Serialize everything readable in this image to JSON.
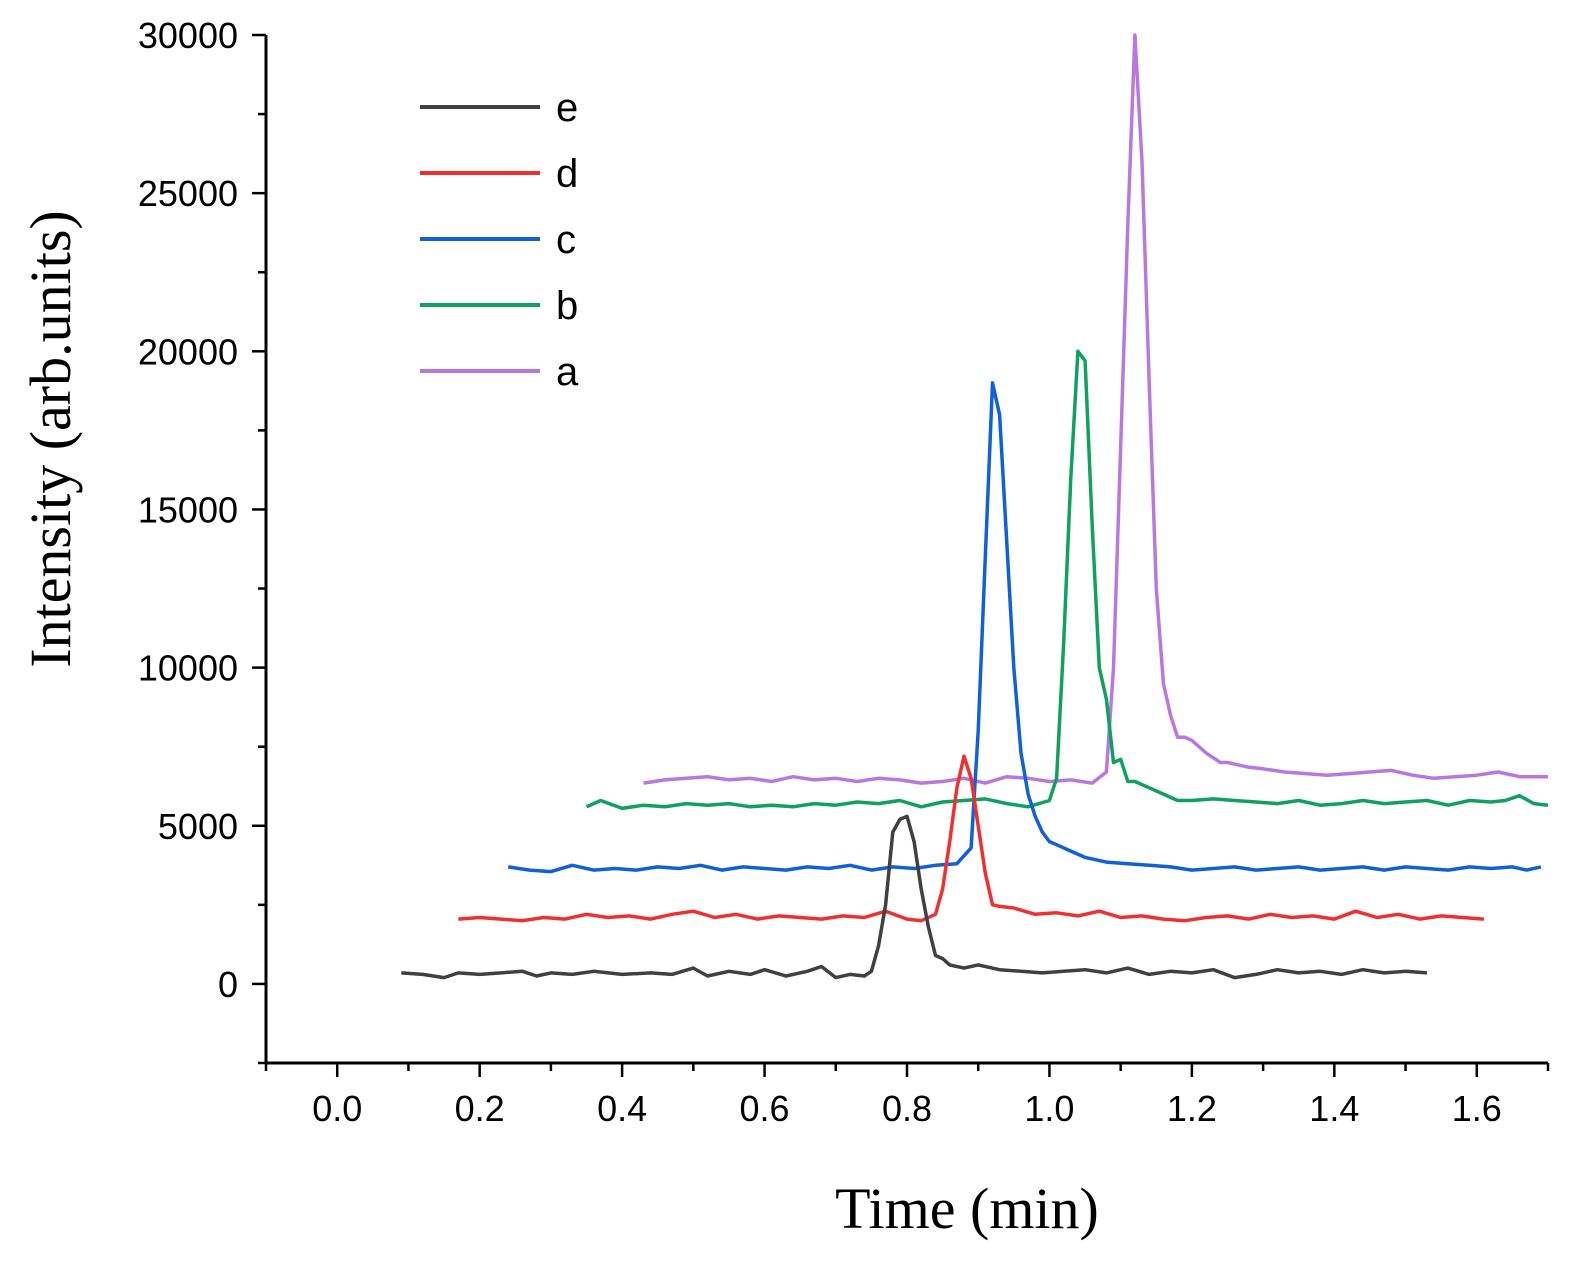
{
  "chart_data": {
    "type": "line",
    "title": "",
    "xlabel": "Time (min)",
    "ylabel": "Intensity (arb.units)",
    "xlim": [
      -0.1,
      1.7
    ],
    "ylim": [
      -2500,
      30000
    ],
    "xticks": [
      "0.0",
      "0.2",
      "0.4",
      "0.6",
      "0.8",
      "1.0",
      "1.2",
      "1.4",
      "1.6"
    ],
    "yticks": [
      "0",
      "5000",
      "10000",
      "15000",
      "20000",
      "25000",
      "30000"
    ],
    "legend_position": "top-left",
    "series": [
      {
        "name": "e",
        "color": "#404040",
        "x": [
          0.09,
          0.12,
          0.15,
          0.17,
          0.2,
          0.23,
          0.26,
          0.28,
          0.3,
          0.33,
          0.36,
          0.4,
          0.44,
          0.47,
          0.5,
          0.52,
          0.55,
          0.58,
          0.6,
          0.63,
          0.66,
          0.68,
          0.7,
          0.72,
          0.74,
          0.75,
          0.76,
          0.77,
          0.78,
          0.79,
          0.8,
          0.81,
          0.82,
          0.83,
          0.84,
          0.85,
          0.86,
          0.88,
          0.9,
          0.93,
          0.96,
          0.99,
          1.02,
          1.05,
          1.08,
          1.11,
          1.14,
          1.17,
          1.2,
          1.23,
          1.26,
          1.29,
          1.32,
          1.35,
          1.38,
          1.41,
          1.44,
          1.47,
          1.5,
          1.53
        ],
        "y": [
          350,
          300,
          200,
          350,
          300,
          350,
          400,
          250,
          350,
          300,
          400,
          300,
          350,
          300,
          500,
          250,
          400,
          300,
          450,
          250,
          400,
          550,
          200,
          300,
          250,
          400,
          1200,
          2500,
          4800,
          5200,
          5300,
          4500,
          3000,
          1800,
          900,
          800,
          600,
          500,
          600,
          450,
          400,
          350,
          400,
          450,
          350,
          500,
          300,
          400,
          350,
          450,
          200,
          300,
          450,
          350,
          400,
          300,
          450,
          350,
          400,
          350
        ]
      },
      {
        "name": "d",
        "color": "#f03030",
        "x": [
          0.17,
          0.2,
          0.23,
          0.26,
          0.29,
          0.32,
          0.35,
          0.38,
          0.41,
          0.44,
          0.47,
          0.5,
          0.53,
          0.56,
          0.59,
          0.62,
          0.65,
          0.68,
          0.71,
          0.74,
          0.77,
          0.8,
          0.82,
          0.84,
          0.85,
          0.86,
          0.87,
          0.88,
          0.89,
          0.9,
          0.91,
          0.92,
          0.93,
          0.95,
          0.98,
          1.01,
          1.04,
          1.07,
          1.1,
          1.13,
          1.16,
          1.19,
          1.22,
          1.25,
          1.28,
          1.31,
          1.34,
          1.37,
          1.4,
          1.43,
          1.46,
          1.49,
          1.52,
          1.55,
          1.58,
          1.61
        ],
        "y": [
          2050,
          2100,
          2050,
          2000,
          2100,
          2050,
          2200,
          2100,
          2150,
          2050,
          2200,
          2300,
          2100,
          2200,
          2050,
          2150,
          2100,
          2050,
          2150,
          2100,
          2300,
          2050,
          2000,
          2200,
          3000,
          4500,
          6200,
          7200,
          6500,
          5000,
          3500,
          2500,
          2450,
          2400,
          2200,
          2250,
          2150,
          2300,
          2100,
          2150,
          2050,
          2000,
          2100,
          2150,
          2050,
          2200,
          2100,
          2150,
          2050,
          2300,
          2100,
          2200,
          2050,
          2150,
          2100,
          2050
        ]
      },
      {
        "name": "c",
        "color": "#1060d8",
        "x": [
          0.24,
          0.27,
          0.3,
          0.33,
          0.36,
          0.39,
          0.42,
          0.45,
          0.48,
          0.51,
          0.54,
          0.57,
          0.6,
          0.63,
          0.66,
          0.69,
          0.72,
          0.75,
          0.78,
          0.81,
          0.84,
          0.87,
          0.89,
          0.9,
          0.91,
          0.92,
          0.93,
          0.94,
          0.95,
          0.96,
          0.97,
          0.98,
          0.99,
          1.0,
          1.01,
          1.03,
          1.05,
          1.08,
          1.11,
          1.14,
          1.17,
          1.2,
          1.23,
          1.26,
          1.29,
          1.32,
          1.35,
          1.38,
          1.41,
          1.44,
          1.47,
          1.5,
          1.53,
          1.56,
          1.59,
          1.62,
          1.65,
          1.67,
          1.69
        ],
        "y": [
          3700,
          3600,
          3550,
          3750,
          3600,
          3650,
          3600,
          3700,
          3650,
          3750,
          3600,
          3700,
          3650,
          3600,
          3700,
          3650,
          3750,
          3600,
          3700,
          3650,
          3750,
          3800,
          4300,
          8000,
          13500,
          19000,
          18000,
          14000,
          10000,
          7300,
          6000,
          5300,
          4800,
          4500,
          4400,
          4200,
          4000,
          3850,
          3800,
          3750,
          3700,
          3600,
          3650,
          3700,
          3600,
          3650,
          3700,
          3600,
          3650,
          3700,
          3600,
          3700,
          3650,
          3600,
          3700,
          3650,
          3700,
          3600,
          3700
        ]
      },
      {
        "name": "b",
        "color": "#10a060",
        "x": [
          0.35,
          0.37,
          0.4,
          0.43,
          0.46,
          0.49,
          0.52,
          0.55,
          0.58,
          0.61,
          0.64,
          0.67,
          0.7,
          0.73,
          0.76,
          0.79,
          0.82,
          0.85,
          0.88,
          0.91,
          0.94,
          0.97,
          1.0,
          1.01,
          1.02,
          1.03,
          1.04,
          1.05,
          1.06,
          1.07,
          1.08,
          1.09,
          1.1,
          1.11,
          1.12,
          1.14,
          1.16,
          1.18,
          1.2,
          1.23,
          1.26,
          1.29,
          1.32,
          1.35,
          1.38,
          1.41,
          1.44,
          1.47,
          1.5,
          1.53,
          1.56,
          1.59,
          1.62,
          1.64,
          1.66,
          1.68,
          1.7
        ],
        "y": [
          5600,
          5800,
          5550,
          5650,
          5600,
          5700,
          5650,
          5700,
          5600,
          5650,
          5600,
          5700,
          5650,
          5750,
          5700,
          5800,
          5600,
          5750,
          5800,
          5850,
          5700,
          5600,
          5800,
          6500,
          10800,
          16000,
          20000,
          19700,
          14500,
          10000,
          9000,
          7000,
          7100,
          6400,
          6400,
          6200,
          6000,
          5800,
          5800,
          5850,
          5800,
          5750,
          5700,
          5800,
          5650,
          5700,
          5800,
          5700,
          5750,
          5800,
          5650,
          5800,
          5750,
          5800,
          5950,
          5700,
          5650
        ]
      },
      {
        "name": "a",
        "color": "#b878e0",
        "x": [
          0.43,
          0.46,
          0.49,
          0.52,
          0.55,
          0.58,
          0.61,
          0.64,
          0.67,
          0.7,
          0.73,
          0.76,
          0.79,
          0.82,
          0.85,
          0.88,
          0.91,
          0.94,
          0.97,
          1.0,
          1.03,
          1.06,
          1.08,
          1.09,
          1.1,
          1.11,
          1.12,
          1.13,
          1.14,
          1.15,
          1.16,
          1.17,
          1.18,
          1.19,
          1.2,
          1.22,
          1.24,
          1.25,
          1.26,
          1.28,
          1.3,
          1.33,
          1.36,
          1.39,
          1.42,
          1.45,
          1.48,
          1.51,
          1.54,
          1.57,
          1.6,
          1.63,
          1.66,
          1.69,
          1.7
        ],
        "y": [
          6350,
          6450,
          6500,
          6550,
          6450,
          6500,
          6400,
          6550,
          6450,
          6500,
          6400,
          6500,
          6450,
          6350,
          6400,
          6500,
          6350,
          6550,
          6500,
          6400,
          6450,
          6350,
          6700,
          10000,
          17000,
          24000,
          30000,
          26000,
          19000,
          12500,
          9500,
          8500,
          7800,
          7800,
          7700,
          7300,
          7000,
          7000,
          6950,
          6850,
          6800,
          6700,
          6650,
          6600,
          6650,
          6700,
          6750,
          6600,
          6500,
          6550,
          6600,
          6700,
          6550,
          6550,
          6550
        ]
      }
    ]
  }
}
